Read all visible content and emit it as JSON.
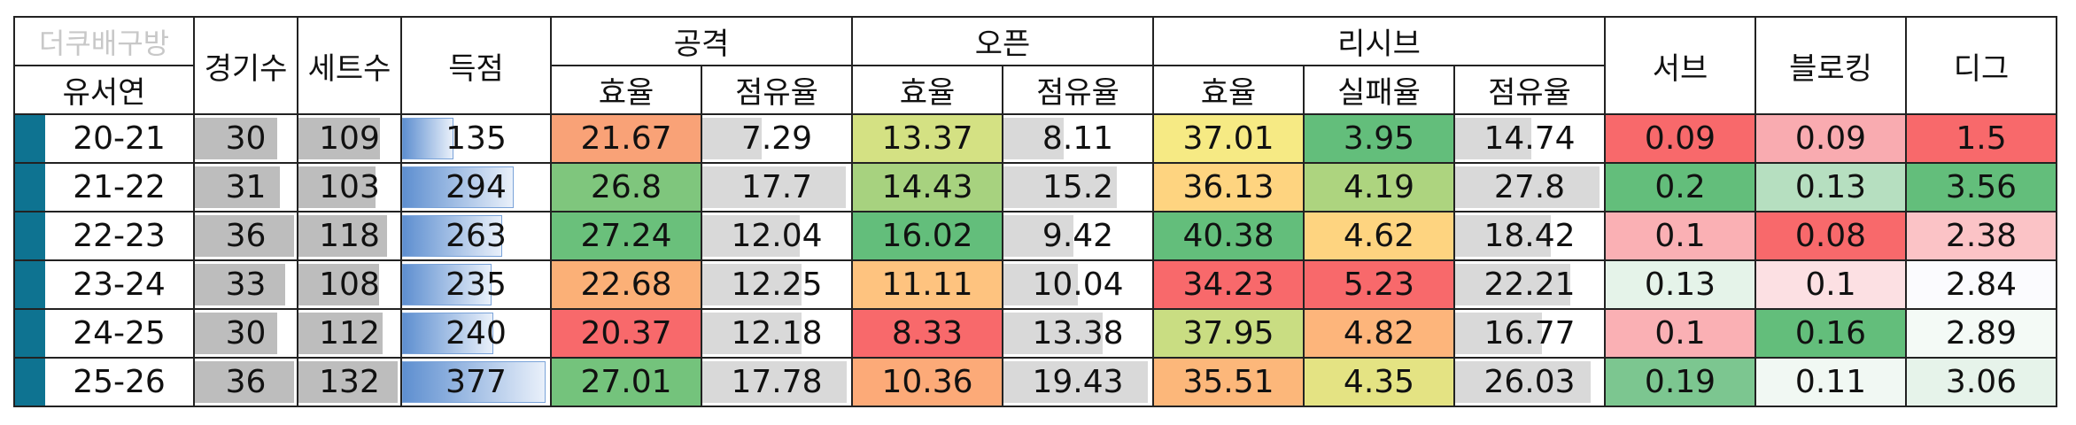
{
  "header": {
    "brand": "더쿠배구방",
    "player": "유서연",
    "games": "경기수",
    "sets": "세트수",
    "points": "득점",
    "attack": "공격",
    "open": "오픈",
    "receive": "리시브",
    "serve": "서브",
    "block": "블로킹",
    "dig": "디그",
    "efficiency": "효율",
    "share": "점유율",
    "fail_rate": "실패율"
  },
  "colors": {
    "marker": "#0e7391",
    "bar_gray": "#bdbdbd",
    "bar_light": "#d9d9d9",
    "bar_blue": "#5e8fd0"
  },
  "scales": {
    "games_max": 36,
    "sets_max": 132,
    "points_max": 377,
    "attack_share_max": 17.78,
    "open_share_max": 19.43,
    "receive_share_max": 27.8
  },
  "rows": [
    {
      "season": "20-21",
      "games": "30",
      "sets": "109",
      "points": "135",
      "att_eff": "21.67",
      "att_share": "7.29",
      "open_eff": "13.37",
      "open_share": "8.11",
      "rec_eff": "37.01",
      "rec_fail": "3.95",
      "rec_share": "14.74",
      "serve": "0.09",
      "block": "0.09",
      "dig": "1.5",
      "c": {
        "att_eff": "#f9a277",
        "open_eff": "#d4e183",
        "rec_eff": "#f6ea84",
        "rec_fail": "#63be7b",
        "serve": "#f8696b",
        "block": "#f9abb0",
        "dig": "#f8696b"
      }
    },
    {
      "season": "21-22",
      "games": "31",
      "sets": "103",
      "points": "294",
      "att_eff": "26.8",
      "att_share": "17.7",
      "open_eff": "14.43",
      "open_share": "15.2",
      "rec_eff": "36.13",
      "rec_fail": "4.19",
      "rec_share": "27.8",
      "serve": "0.2",
      "block": "0.13",
      "dig": "3.56",
      "c": {
        "att_eff": "#7fc67d",
        "open_eff": "#a7d27f",
        "rec_eff": "#fed480",
        "rec_fail": "#add47f",
        "serve": "#63be7b",
        "block": "#b6dfc0",
        "dig": "#63be7b"
      }
    },
    {
      "season": "22-23",
      "games": "36",
      "sets": "118",
      "points": "263",
      "att_eff": "27.24",
      "att_share": "12.04",
      "open_eff": "16.02",
      "open_share": "9.42",
      "rec_eff": "40.38",
      "rec_fail": "4.62",
      "rec_share": "18.42",
      "serve": "0.1",
      "block": "0.08",
      "dig": "2.38",
      "c": {
        "att_eff": "#6ac07b",
        "open_eff": "#63be7b",
        "rec_eff": "#63be7b",
        "rec_fail": "#fed480",
        "serve": "#fab0b4",
        "block": "#f8696b",
        "dig": "#fbc3c6"
      }
    },
    {
      "season": "23-24",
      "games": "33",
      "sets": "108",
      "points": "235",
      "att_eff": "22.68",
      "att_share": "12.25",
      "open_eff": "11.11",
      "open_share": "10.04",
      "rec_eff": "34.23",
      "rec_fail": "5.23",
      "rec_share": "22.21",
      "serve": "0.13",
      "block": "0.1",
      "dig": "2.84",
      "c": {
        "att_eff": "#fbb077",
        "open_eff": "#fec37f",
        "rec_eff": "#f8696b",
        "rec_fail": "#f8696b",
        "serve": "#e5f3e9",
        "block": "#fce0e3",
        "dig": "#fbfbfe"
      }
    },
    {
      "season": "24-25",
      "games": "30",
      "sets": "112",
      "points": "240",
      "att_eff": "20.37",
      "att_share": "12.18",
      "open_eff": "8.33",
      "open_share": "13.38",
      "rec_eff": "37.95",
      "rec_fail": "4.82",
      "rec_share": "16.77",
      "serve": "0.1",
      "block": "0.16",
      "dig": "2.89",
      "c": {
        "att_eff": "#f8696b",
        "open_eff": "#f8696b",
        "rec_eff": "#c9dd82",
        "rec_fail": "#fdb57b",
        "serve": "#fab0b4",
        "block": "#63be7b",
        "dig": "#f4faf6"
      }
    },
    {
      "season": "25-26",
      "games": "36",
      "sets": "132",
      "points": "377",
      "att_eff": "27.01",
      "att_share": "17.78",
      "open_eff": "10.36",
      "open_share": "19.43",
      "rec_eff": "35.51",
      "rec_fail": "4.35",
      "rec_share": "26.03",
      "serve": "0.19",
      "block": "0.11",
      "dig": "3.06",
      "c": {
        "att_eff": "#74c37c",
        "open_eff": "#fcaa78",
        "rec_eff": "#fcb77a",
        "rec_fail": "#e4e383",
        "serve": "#7cc690",
        "block": "#f1f8f3",
        "dig": "#e6f3ea"
      }
    }
  ]
}
